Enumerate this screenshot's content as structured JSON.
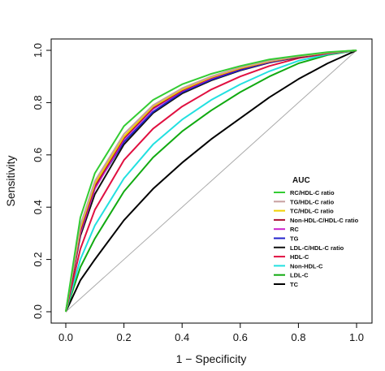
{
  "chart_data": {
    "type": "line",
    "xlabel": "1 − Specificity",
    "ylabel": "Sensitivity",
    "xlim": [
      0,
      1
    ],
    "ylim": [
      0,
      1
    ],
    "x_ticks": [
      "0.0",
      "0.2",
      "0.4",
      "0.6",
      "0.8",
      "1.0"
    ],
    "y_ticks": [
      "0.0",
      "0.2",
      "0.4",
      "0.6",
      "0.8",
      "1.0"
    ],
    "grid": false,
    "legend": {
      "title": "AUC",
      "placement": "bottom-right"
    },
    "reference_line": {
      "x": [
        0,
        1
      ],
      "y": [
        0,
        1
      ],
      "color": "#aaaaaa"
    },
    "series": [
      {
        "name": "RC/HDL-C ratio",
        "color": "#33cc33",
        "x": [
          0,
          0.05,
          0.1,
          0.2,
          0.3,
          0.4,
          0.5,
          0.6,
          0.7,
          0.8,
          0.9,
          1.0
        ],
        "y": [
          0,
          0.36,
          0.53,
          0.71,
          0.81,
          0.87,
          0.91,
          0.94,
          0.965,
          0.98,
          0.993,
          1.0
        ]
      },
      {
        "name": "TG/HDL-C ratio",
        "color": "#c8a0a0",
        "x": [
          0,
          0.05,
          0.1,
          0.2,
          0.3,
          0.4,
          0.5,
          0.6,
          0.7,
          0.8,
          0.9,
          1.0
        ],
        "y": [
          0,
          0.33,
          0.5,
          0.68,
          0.79,
          0.855,
          0.9,
          0.935,
          0.96,
          0.978,
          0.992,
          1.0
        ]
      },
      {
        "name": "TC/HDL-C ratio",
        "color": "#f0d000",
        "x": [
          0,
          0.05,
          0.1,
          0.2,
          0.3,
          0.4,
          0.5,
          0.6,
          0.7,
          0.8,
          0.9,
          1.0
        ],
        "y": [
          0,
          0.32,
          0.49,
          0.67,
          0.785,
          0.85,
          0.897,
          0.932,
          0.958,
          0.977,
          0.991,
          1.0
        ]
      },
      {
        "name": "Non-HDL-C/HDL-C ratio",
        "color": "#aa1133",
        "x": [
          0,
          0.05,
          0.1,
          0.2,
          0.3,
          0.4,
          0.5,
          0.6,
          0.7,
          0.8,
          0.9,
          1.0
        ],
        "y": [
          0,
          0.31,
          0.48,
          0.665,
          0.78,
          0.847,
          0.895,
          0.93,
          0.957,
          0.976,
          0.99,
          1.0
        ]
      },
      {
        "name": "RC",
        "color": "#cc22cc",
        "x": [
          0,
          0.05,
          0.1,
          0.2,
          0.3,
          0.4,
          0.5,
          0.6,
          0.7,
          0.8,
          0.9,
          1.0
        ],
        "y": [
          0,
          0.3,
          0.47,
          0.66,
          0.775,
          0.845,
          0.893,
          0.93,
          0.956,
          0.976,
          0.99,
          1.0
        ]
      },
      {
        "name": "TG",
        "color": "#2222cc",
        "x": [
          0,
          0.05,
          0.1,
          0.2,
          0.3,
          0.4,
          0.5,
          0.6,
          0.7,
          0.8,
          0.9,
          1.0
        ],
        "y": [
          0,
          0.32,
          0.475,
          0.65,
          0.765,
          0.84,
          0.888,
          0.925,
          0.954,
          0.975,
          0.99,
          1.0
        ]
      },
      {
        "name": "LDL-C/HDL-C ratio",
        "color": "#111111",
        "x": [
          0,
          0.05,
          0.1,
          0.2,
          0.3,
          0.4,
          0.5,
          0.6,
          0.7,
          0.8,
          0.9,
          1.0
        ],
        "y": [
          0,
          0.29,
          0.45,
          0.64,
          0.76,
          0.835,
          0.885,
          0.923,
          0.953,
          0.974,
          0.99,
          1.0
        ]
      },
      {
        "name": "HDL-C",
        "color": "#e01040",
        "x": [
          0,
          0.05,
          0.1,
          0.2,
          0.3,
          0.4,
          0.5,
          0.6,
          0.7,
          0.8,
          0.9,
          1.0
        ],
        "y": [
          0,
          0.24,
          0.39,
          0.58,
          0.7,
          0.785,
          0.85,
          0.9,
          0.94,
          0.97,
          0.988,
          1.0
        ]
      },
      {
        "name": "Non-HDL-C",
        "color": "#22e0e0",
        "x": [
          0,
          0.05,
          0.1,
          0.2,
          0.3,
          0.4,
          0.5,
          0.6,
          0.7,
          0.8,
          0.9,
          1.0
        ],
        "y": [
          0,
          0.2,
          0.33,
          0.51,
          0.64,
          0.735,
          0.81,
          0.87,
          0.92,
          0.96,
          0.985,
          1.0
        ]
      },
      {
        "name": "LDL-C",
        "color": "#11aa11",
        "x": [
          0,
          0.05,
          0.1,
          0.2,
          0.3,
          0.4,
          0.5,
          0.6,
          0.7,
          0.8,
          0.9,
          1.0
        ],
        "y": [
          0,
          0.17,
          0.28,
          0.46,
          0.59,
          0.69,
          0.77,
          0.84,
          0.9,
          0.95,
          0.982,
          1.0
        ]
      },
      {
        "name": "TC",
        "color": "#000000",
        "x": [
          0,
          0.05,
          0.1,
          0.2,
          0.3,
          0.4,
          0.5,
          0.6,
          0.7,
          0.8,
          0.9,
          1.0
        ],
        "y": [
          0,
          0.12,
          0.2,
          0.35,
          0.47,
          0.57,
          0.66,
          0.74,
          0.82,
          0.89,
          0.95,
          1.0
        ]
      }
    ]
  }
}
